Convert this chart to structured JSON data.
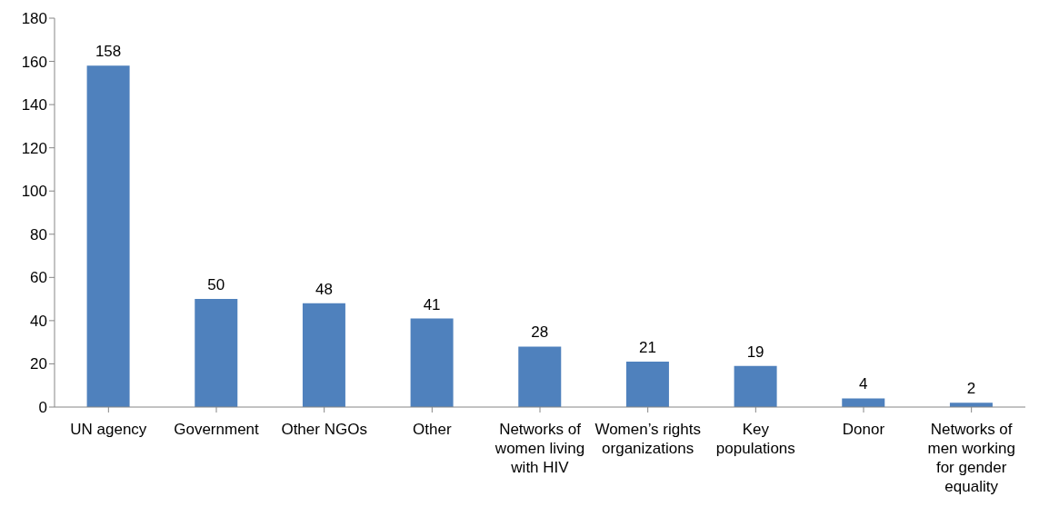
{
  "chart_data": {
    "type": "bar",
    "categories": [
      "UN agency",
      "Government",
      "Other NGOs",
      "Other",
      "Networks of women living with HIV",
      "Women’s rights organizations",
      "Key populations",
      "Donor",
      "Networks of men working for gender equality"
    ],
    "values": [
      158,
      50,
      48,
      41,
      28,
      21,
      19,
      4,
      2
    ],
    "color": "#4f81bd",
    "ylim": [
      0,
      180
    ],
    "yticks": [
      0,
      20,
      40,
      60,
      80,
      100,
      120,
      140,
      160,
      180
    ],
    "grid": false,
    "data_labels": true
  }
}
